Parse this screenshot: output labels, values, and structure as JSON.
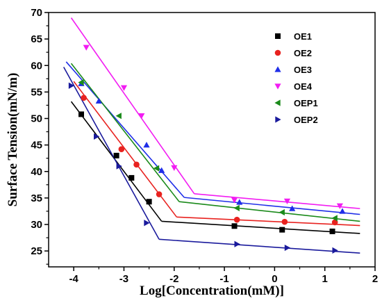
{
  "chart_data": {
    "type": "scatter",
    "title": "",
    "xlabel": "Log[Concentration(mM)]",
    "ylabel": "Surface Tension(mN/m)",
    "xlim": [
      -4.5,
      2
    ],
    "ylim": [
      22,
      70
    ],
    "xticks": [
      "-4",
      "-3",
      "-2",
      "-1",
      "0",
      "1",
      "2"
    ],
    "yticks": [
      "25",
      "30",
      "35",
      "40",
      "45",
      "50",
      "55",
      "60",
      "65",
      "70"
    ],
    "grid": false,
    "legend_position": "top-right",
    "series": [
      {
        "name": "OE1",
        "marker": "square",
        "color": "#000000",
        "points": [
          [
            -3.85,
            50.8
          ],
          [
            -3.15,
            43.0
          ],
          [
            -2.85,
            38.8
          ],
          [
            -2.5,
            34.3
          ],
          [
            -0.8,
            29.7
          ],
          [
            0.15,
            29.0
          ],
          [
            1.15,
            28.7
          ]
        ],
        "fit": [
          [
            [
              -4.05,
              53.2
            ],
            [
              -2.25,
              30.6
            ]
          ],
          [
            [
              -2.25,
              30.6
            ],
            [
              1.7,
              28.3
            ]
          ]
        ]
      },
      {
        "name": "OE2",
        "marker": "circle",
        "color": "#e8221f",
        "points": [
          [
            -3.8,
            53.9
          ],
          [
            -3.05,
            44.2
          ],
          [
            -2.75,
            41.3
          ],
          [
            -2.3,
            35.7
          ],
          [
            -0.75,
            30.9
          ],
          [
            0.2,
            30.5
          ],
          [
            1.2,
            30.4
          ]
        ],
        "fit": [
          [
            [
              -4.0,
              57.0
            ],
            [
              -1.95,
              31.4
            ]
          ],
          [
            [
              -1.95,
              31.4
            ],
            [
              1.7,
              29.8
            ]
          ]
        ]
      },
      {
        "name": "OE3",
        "marker": "triangle-up",
        "color": "#1f2ee8",
        "points": [
          [
            -3.85,
            56.6
          ],
          [
            -3.5,
            53.3
          ],
          [
            -2.55,
            45.0
          ],
          [
            -2.25,
            40.2
          ],
          [
            -0.7,
            34.2
          ],
          [
            0.35,
            33.0
          ],
          [
            1.35,
            32.5
          ]
        ],
        "fit": [
          [
            [
              -4.15,
              60.7
            ],
            [
              -1.8,
              35.1
            ]
          ],
          [
            [
              -1.8,
              35.1
            ],
            [
              1.7,
              31.9
            ]
          ]
        ]
      },
      {
        "name": "OE4",
        "marker": "triangle-down",
        "color": "#f21cf2",
        "points": [
          [
            -3.75,
            63.4
          ],
          [
            -3.0,
            55.8
          ],
          [
            -2.65,
            50.5
          ],
          [
            -2.0,
            40.7
          ],
          [
            -0.8,
            34.6
          ],
          [
            0.25,
            34.4
          ],
          [
            1.3,
            33.5
          ]
        ],
        "fit": [
          [
            [
              -4.05,
              69.0
            ],
            [
              -1.6,
              35.8
            ]
          ],
          [
            [
              -1.6,
              35.8
            ],
            [
              1.7,
              33.0
            ]
          ]
        ]
      },
      {
        "name": "OEP1",
        "marker": "triangle-left",
        "color": "#1a8a1a",
        "points": [
          [
            -3.85,
            56.8
          ],
          [
            -3.1,
            50.5
          ],
          [
            -2.35,
            40.6
          ],
          [
            -0.75,
            33.1
          ],
          [
            0.15,
            32.3
          ],
          [
            1.2,
            31.2
          ]
        ],
        "fit": [
          [
            [
              -4.05,
              60.4
            ],
            [
              -1.9,
              34.3
            ]
          ],
          [
            [
              -1.9,
              34.3
            ],
            [
              1.7,
              30.6
            ]
          ]
        ]
      },
      {
        "name": "OEP2",
        "marker": "triangle-right",
        "color": "#1a1a9c",
        "points": [
          [
            -4.05,
            56.2
          ],
          [
            -3.55,
            46.6
          ],
          [
            -3.1,
            41.0
          ],
          [
            -2.55,
            30.3
          ],
          [
            -0.75,
            26.3
          ],
          [
            0.25,
            25.6
          ],
          [
            1.2,
            25.1
          ]
        ],
        "fit": [
          [
            [
              -4.2,
              59.7
            ],
            [
              -2.3,
              27.2
            ]
          ],
          [
            [
              -2.3,
              27.2
            ],
            [
              1.7,
              24.6
            ]
          ]
        ]
      }
    ]
  }
}
